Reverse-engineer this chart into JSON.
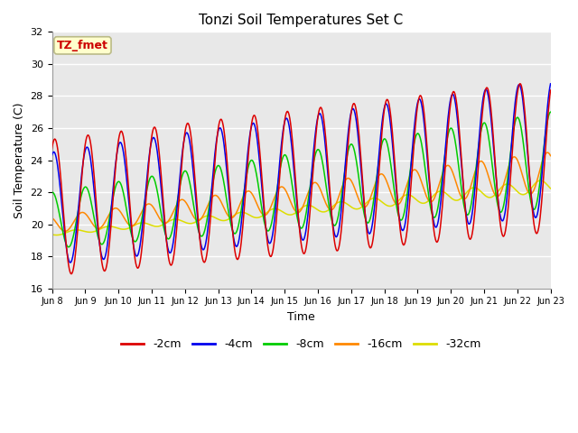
{
  "title": "Tonzi Soil Temperatures Set C",
  "xlabel": "Time",
  "ylabel": "Soil Temperature (C)",
  "ylim": [
    16,
    32
  ],
  "bg_color": "#e8e8e8",
  "fig_bg": "#ffffff",
  "grid_color": "#ffffff",
  "annotation_text": "TZ_fmet",
  "annotation_bg": "#ffffcc",
  "annotation_fg": "#cc0000",
  "legend_labels": [
    "-2cm",
    "-4cm",
    "-8cm",
    "-16cm",
    "-32cm"
  ],
  "line_colors": [
    "#dd0000",
    "#0000ee",
    "#00cc00",
    "#ff8800",
    "#dddd00"
  ],
  "tick_labels": [
    "Jun 8",
    "Jun 9",
    "Jun 10",
    "Jun 11",
    "Jun 12",
    "Jun 13",
    "Jun 14",
    "Jun 15",
    "Jun 16",
    "Jun 17",
    "Jun 18",
    "Jun 19",
    "Jun 20",
    "Jun 21",
    "Jun 22",
    "Jun 23"
  ],
  "yticks": [
    16,
    18,
    20,
    22,
    24,
    26,
    28,
    30,
    32
  ],
  "n_days": 15,
  "pts_per_day": 48
}
